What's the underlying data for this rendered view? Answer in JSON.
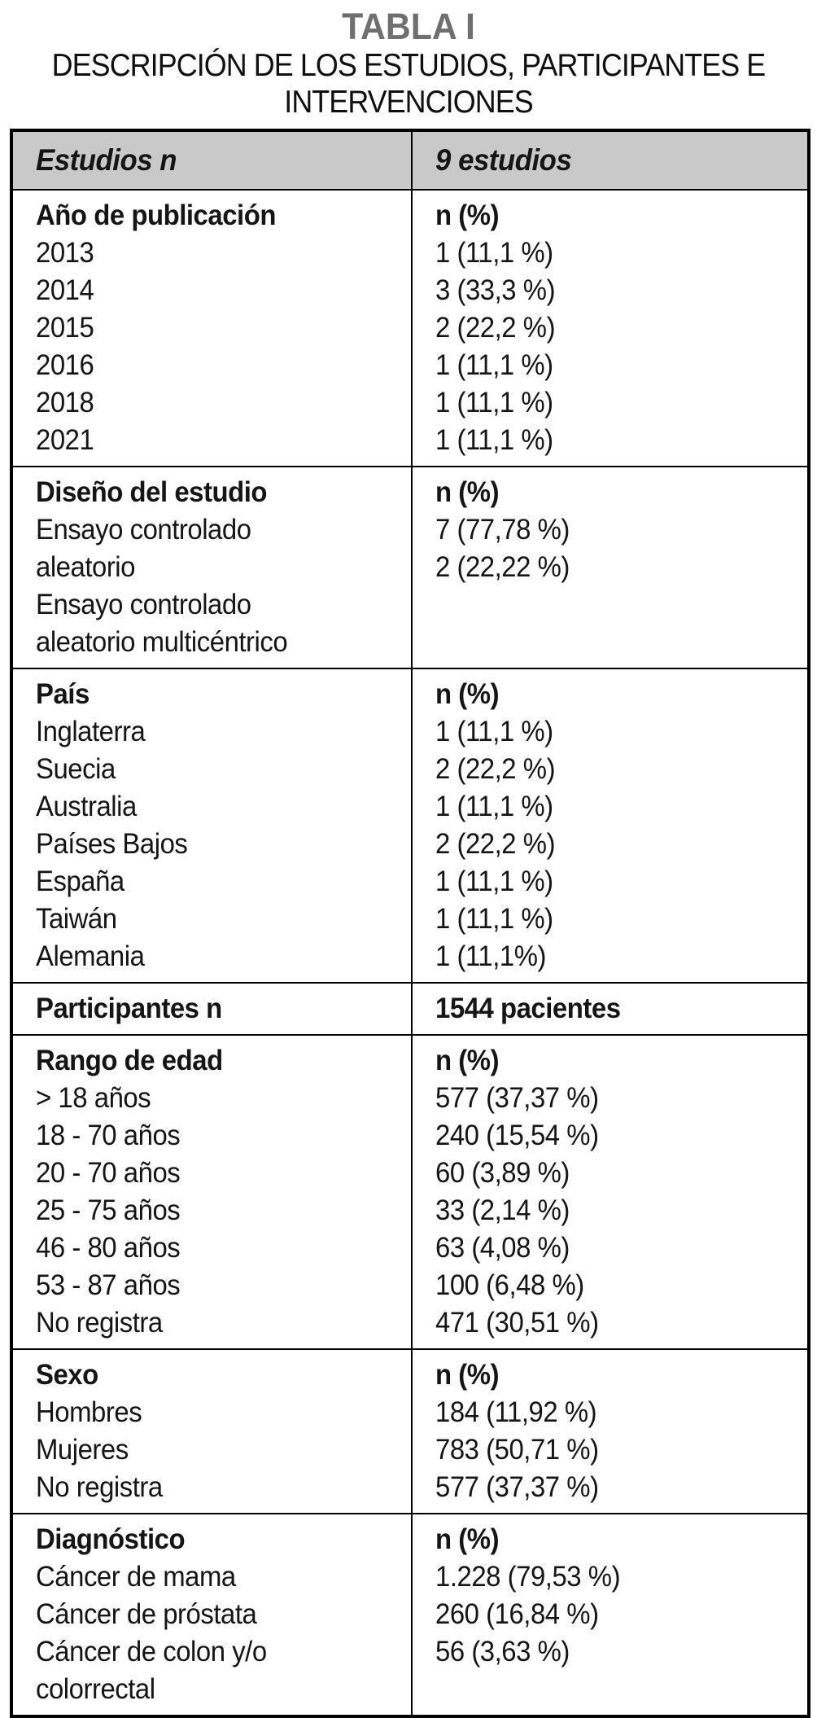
{
  "title": "TABLA I",
  "subtitle_lines": [
    "DESCRIPCIÓN DE LOS ESTUDIOS, PARTICIPANTES E",
    "INTERVENCIONES"
  ],
  "colors": {
    "title_gray": "#6f6f6f",
    "header_row_bg": "#c9c9c9",
    "border": "#000000"
  },
  "table": {
    "header": {
      "col1": "Estudios n",
      "col2": "9 estudios"
    },
    "sections": [
      {
        "category": "Año de publicación",
        "value_header": "n (%)",
        "label_lines": [
          "2013",
          "2014",
          "2015",
          "2016",
          "2018",
          "2021"
        ],
        "value_lines": [
          "1 (11,1 %)",
          "3 (33,3 %)",
          "2 (22,2 %)",
          "1 (11,1 %)",
          "1 (11,1 %)",
          "1 (11,1 %)"
        ]
      },
      {
        "category": "Diseño del estudio",
        "value_header": "n (%)",
        "label_lines": [
          "Ensayo controlado",
          "aleatorio",
          "Ensayo controlado",
          "aleatorio multicéntrico"
        ],
        "value_lines": [
          "7 (77,78 %)",
          "2 (22,22 %)"
        ]
      },
      {
        "category": "País",
        "value_header": "n (%)",
        "label_lines": [
          "Inglaterra",
          "Suecia",
          "Australia",
          "Países Bajos",
          "España",
          "Taiwán",
          "Alemania"
        ],
        "value_lines": [
          "1 (11,1 %)",
          "2 (22,2 %)",
          "1 (11,1 %)",
          "2 (22,2 %)",
          "1 (11,1 %)",
          "1 (11,1 %)",
          "1 (11,1%)"
        ]
      },
      {
        "category": "Participantes n",
        "value_header": "1544 pacientes",
        "label_lines": [],
        "value_lines": []
      },
      {
        "category": "Rango de edad",
        "value_header": "n (%)",
        "label_lines": [
          "> 18 años",
          "18 - 70 años",
          "20 - 70 años",
          "25 - 75 años",
          "46 - 80 años",
          "53 - 87 años",
          "No registra"
        ],
        "value_lines": [
          "577 (37,37 %)",
          "240 (15,54 %)",
          "60 (3,89 %)",
          "33 (2,14 %)",
          "63 (4,08 %)",
          "100 (6,48 %)",
          "471 (30,51 %)"
        ]
      },
      {
        "category": "Sexo",
        "value_header": "n (%)",
        "label_lines": [
          "Hombres",
          "Mujeres",
          "No registra"
        ],
        "value_lines": [
          "184 (11,92 %)",
          "783 (50,71 %)",
          "577 (37,37 %)"
        ]
      },
      {
        "category": "Diagnóstico",
        "value_header": "n (%)",
        "label_lines": [
          "Cáncer de mama",
          "Cáncer de próstata",
          "Cáncer de colon y/o",
          "colorrectal"
        ],
        "value_lines": [
          "1.228 (79,53 %)",
          "260 (16,84 %)",
          "56 (3,63 %)"
        ]
      }
    ]
  }
}
